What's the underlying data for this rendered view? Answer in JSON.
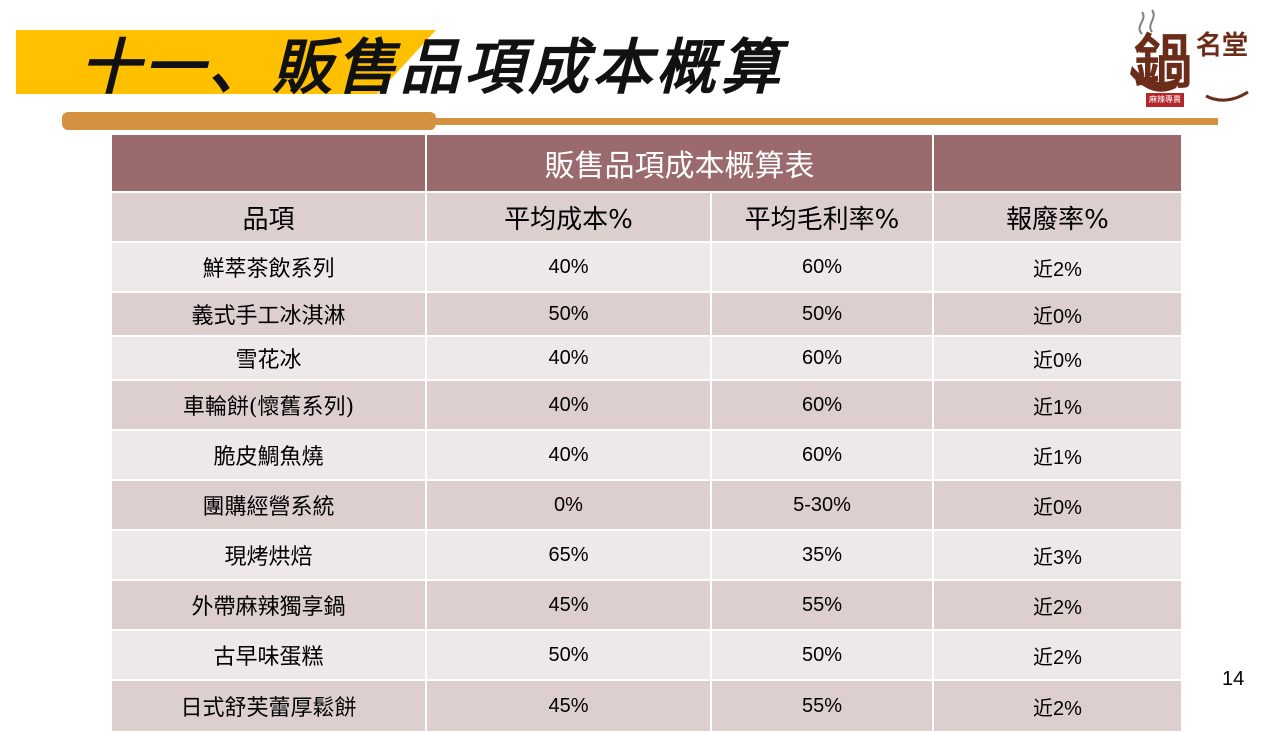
{
  "slide": {
    "title": "十一、販售品項成本概算",
    "page_number": "14"
  },
  "logo": {
    "main_text": "鍋",
    "brand_text": "名堂",
    "seal_text": "麻辣專賣",
    "accent_color": "#b3282d",
    "brown_color": "#6b2c1a"
  },
  "colors": {
    "title_highlight": "#ffc000",
    "title_rule": "#d4913f",
    "table_caption_bg": "#9b6a6c",
    "table_band_dark": "#decfcf",
    "table_band_light": "#efe8e8"
  },
  "table": {
    "caption": "販售品項成本概算表",
    "headers": [
      "品項",
      "平均成本%",
      "平均毛利率%",
      "報廢率%"
    ],
    "rows": [
      [
        "鮮萃茶飲系列",
        "40%",
        "60%",
        "近2%"
      ],
      [
        "義式手工冰淇淋",
        "50%",
        "50%",
        "近0%"
      ],
      [
        "雪花冰",
        "40%",
        "60%",
        "近0%"
      ],
      [
        "車輪餅(懷舊系列)",
        "40%",
        "60%",
        "近1%"
      ],
      [
        "脆皮鯛魚燒",
        "40%",
        "60%",
        "近1%"
      ],
      [
        "團購經營系統",
        "0%",
        "5-30%",
        "近0%"
      ],
      [
        "現烤烘焙",
        "65%",
        "35%",
        "近3%"
      ],
      [
        "外帶麻辣獨享鍋",
        "45%",
        "55%",
        "近2%"
      ],
      [
        "古早味蛋糕",
        "50%",
        "50%",
        "近2%"
      ],
      [
        "日式舒芙蕾厚鬆餅",
        "45%",
        "55%",
        "近2%"
      ]
    ]
  }
}
